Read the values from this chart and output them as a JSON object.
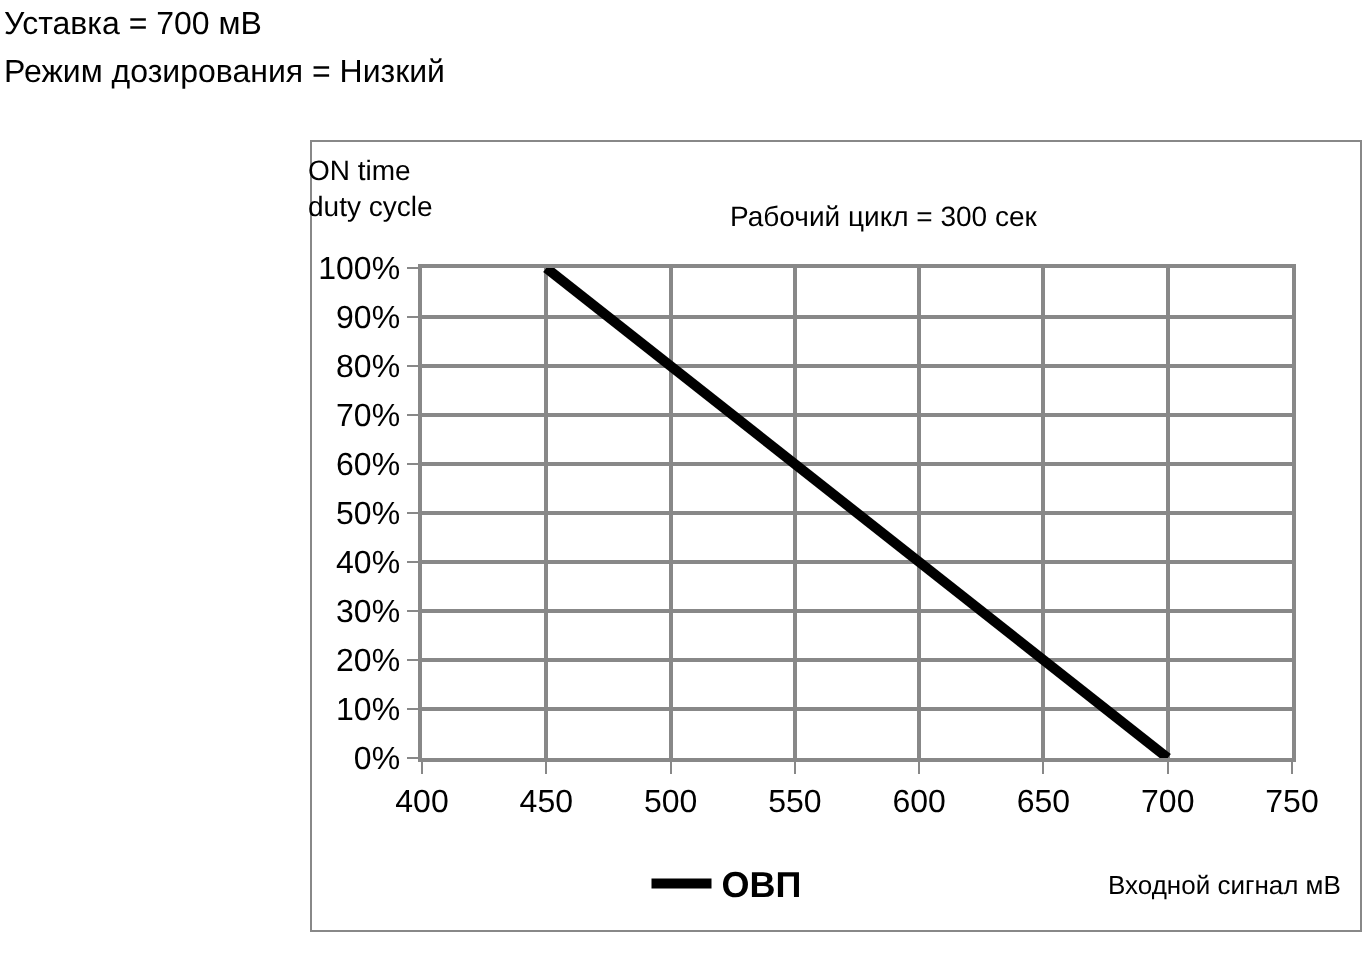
{
  "chart_data": {
    "type": "line",
    "title": "Уставка = 700 мВ",
    "subtitle": "Режим дозирования = Низкий",
    "xlabel": "Входной сигнал мВ",
    "ylabel": "ON time duty cycle",
    "annotations": [
      "Рабочий цикл = 300 сек"
    ],
    "series": [
      {
        "name": "ОВП",
        "color": "#000000",
        "x": [
          450,
          700
        ],
        "values": [
          100,
          0
        ]
      }
    ],
    "xlim": [
      400,
      750
    ],
    "xticks": [
      400,
      450,
      500,
      550,
      600,
      650,
      700,
      750
    ],
    "ylim": [
      0,
      100
    ],
    "yticks": [
      {
        "value": 0,
        "label": "0%"
      },
      {
        "value": 10,
        "label": "10%"
      },
      {
        "value": 20,
        "label": "20%"
      },
      {
        "value": 30,
        "label": "30%"
      },
      {
        "value": 40,
        "label": "40%"
      },
      {
        "value": 50,
        "label": "50%"
      },
      {
        "value": 60,
        "label": "60%"
      },
      {
        "value": 70,
        "label": "70%"
      },
      {
        "value": 80,
        "label": "80%"
      },
      {
        "value": 90,
        "label": "90%"
      },
      {
        "value": 100,
        "label": "100%"
      }
    ],
    "grid": true,
    "legend": "bottom",
    "marker": "none",
    "line_style": "solid"
  }
}
